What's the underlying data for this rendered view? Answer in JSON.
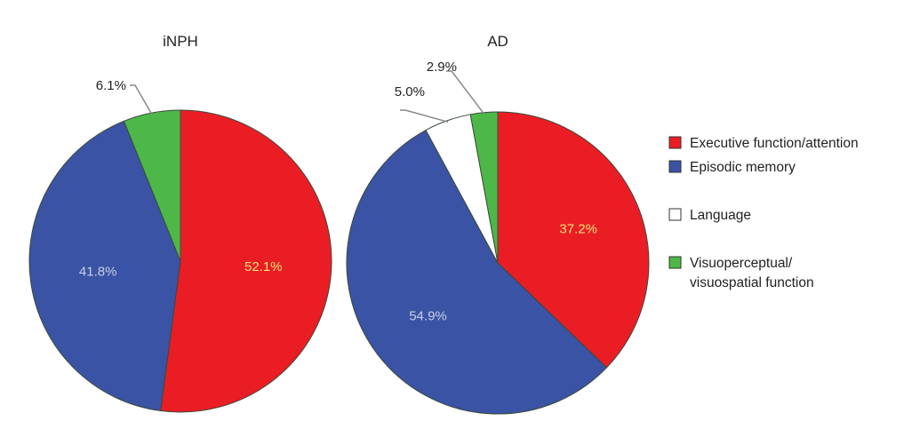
{
  "categories": [
    "Executive function/attention",
    "Episodic memory",
    "Language",
    "Visuoperceptual/ visuospatial function"
  ],
  "legend": {
    "placement": "right",
    "items": [
      {
        "lines": [
          "Executive function/attention"
        ],
        "color": "#ea1d24"
      },
      {
        "lines": [
          "Episodic memory"
        ],
        "color": "#3a53a4"
      },
      {
        "lines": [
          "Language"
        ],
        "color": "#ffffff"
      },
      {
        "lines": [
          "Visuoperceptual/",
          "visuospatial function"
        ],
        "color": "#4db848"
      }
    ]
  },
  "chart_data": [
    {
      "type": "pie",
      "title": "iNPH",
      "slices": [
        {
          "category": "Executive function/attention",
          "value": 52.1,
          "label": "52.1%",
          "color": "#ea1d24",
          "label_color": "#f7e27a"
        },
        {
          "category": "Episodic memory",
          "value": 41.8,
          "label": "41.8%",
          "color": "#3a53a4",
          "label_color": "#c9cfe8"
        },
        {
          "category": "Visuoperceptual/ visuospatial function",
          "value": 6.1,
          "label": "6.1%",
          "color": "#4db848",
          "label_color": "#222222",
          "callout": true
        }
      ]
    },
    {
      "type": "pie",
      "title": "AD",
      "slices": [
        {
          "category": "Executive function/attention",
          "value": 37.2,
          "label": "37.2%",
          "color": "#ea1d24",
          "label_color": "#f7e27a"
        },
        {
          "category": "Episodic memory",
          "value": 54.9,
          "label": "54.9%",
          "color": "#3a53a4",
          "label_color": "#c9cfe8"
        },
        {
          "category": "Language",
          "value": 5.0,
          "label": "5.0%",
          "color": "#ffffff",
          "label_color": "#222222",
          "callout": true
        },
        {
          "category": "Visuoperceptual/ visuospatial function",
          "value": 2.9,
          "label": "2.9%",
          "color": "#4db848",
          "label_color": "#222222",
          "callout": true
        }
      ]
    }
  ]
}
